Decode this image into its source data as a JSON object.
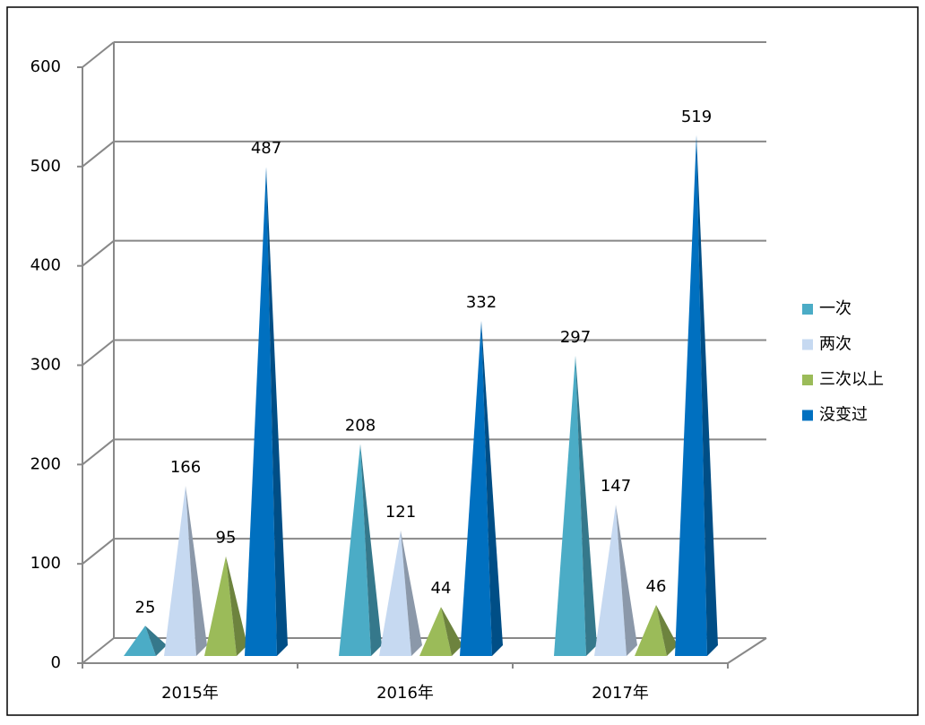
{
  "chart_data": {
    "type": "pyramid3d",
    "categories": [
      "2015年",
      "2016年",
      "2017年"
    ],
    "series": [
      {
        "name": "一次",
        "color": "#4bacc6",
        "values": [
          25,
          208,
          297
        ]
      },
      {
        "name": "两次",
        "color": "#c6d9f1",
        "values": [
          166,
          121,
          147
        ]
      },
      {
        "name": "三次以上",
        "color": "#9bbb59",
        "values": [
          95,
          44,
          46
        ]
      },
      {
        "name": "没变过",
        "color": "#0070c0",
        "values": [
          487,
          332,
          519
        ]
      }
    ],
    "ylim": [
      0,
      600
    ],
    "yticks": [
      0,
      100,
      200,
      300,
      400,
      500,
      600
    ],
    "grid": true,
    "legend": "right"
  }
}
